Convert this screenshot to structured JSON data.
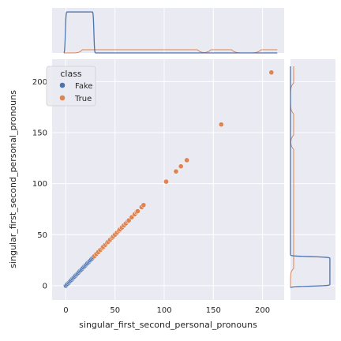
{
  "chart_data": {
    "type": "scatter",
    "xlabel": "singular_first_second_personal_pronouns",
    "ylabel": "singular_first_second_personal_pronouns",
    "xlim": [
      -14,
      222
    ],
    "ylim": [
      -14,
      222
    ],
    "xticks": [
      0,
      50,
      100,
      150,
      200
    ],
    "yticks": [
      0,
      50,
      100,
      150,
      200
    ],
    "grid": true,
    "legend_placement": "top-left",
    "legend_title": "class",
    "series": [
      {
        "name": "Fake",
        "color": "#4c72b0",
        "points": [
          [
            0,
            0
          ],
          [
            1,
            1
          ],
          [
            2,
            2
          ],
          [
            3,
            3
          ],
          [
            4,
            4
          ],
          [
            5,
            5
          ],
          [
            6,
            6
          ],
          [
            7,
            7
          ],
          [
            8,
            8
          ],
          [
            9,
            9
          ],
          [
            10,
            10
          ],
          [
            11,
            11
          ],
          [
            12,
            12
          ],
          [
            13,
            13
          ],
          [
            14,
            14
          ],
          [
            15,
            15
          ],
          [
            16,
            16
          ],
          [
            17,
            17
          ],
          [
            18,
            18
          ],
          [
            19,
            19
          ],
          [
            20,
            20
          ],
          [
            21,
            21
          ],
          [
            22,
            22
          ],
          [
            23,
            23
          ],
          [
            24,
            24
          ],
          [
            25,
            25
          ],
          [
            26,
            26
          ],
          [
            27,
            27
          ],
          [
            28,
            28
          ]
        ]
      },
      {
        "name": "True",
        "color": "#dd8452",
        "points": [
          [
            29,
            29
          ],
          [
            31,
            31
          ],
          [
            33,
            33
          ],
          [
            35,
            35
          ],
          [
            37,
            37
          ],
          [
            38,
            38
          ],
          [
            40,
            40
          ],
          [
            42,
            42
          ],
          [
            43,
            43
          ],
          [
            45,
            45
          ],
          [
            47,
            47
          ],
          [
            48,
            48
          ],
          [
            50,
            50
          ],
          [
            52,
            52
          ],
          [
            54,
            54
          ],
          [
            55,
            55
          ],
          [
            57,
            57
          ],
          [
            59,
            59
          ],
          [
            61,
            61
          ],
          [
            63,
            63
          ],
          [
            64,
            64
          ],
          [
            67,
            67
          ],
          [
            70,
            70
          ],
          [
            72,
            72
          ],
          [
            73,
            73
          ],
          [
            77,
            77
          ],
          [
            79,
            79
          ],
          [
            102,
            102
          ],
          [
            112,
            112
          ],
          [
            117,
            117
          ],
          [
            123,
            123
          ],
          [
            158,
            158
          ],
          [
            209,
            209
          ]
        ]
      }
    ],
    "marginal_x": {
      "type": "kde",
      "fake_peak_at": 0,
      "true_spread_to": 210
    },
    "marginal_y": {
      "type": "kde",
      "fake_peak_at": 0,
      "true_spread_to": 210
    }
  }
}
